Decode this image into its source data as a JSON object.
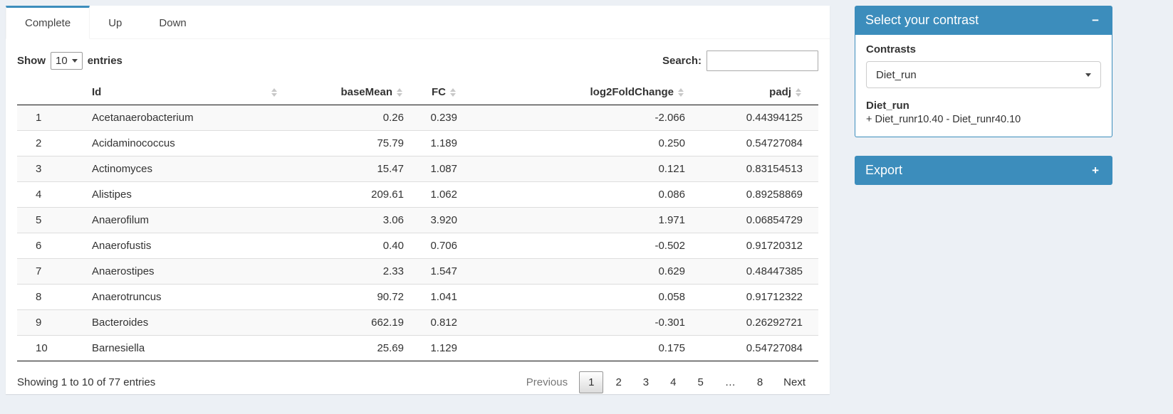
{
  "colors": {
    "primary": "#3c8dbc",
    "page_bg": "#ecf0f5"
  },
  "icons": {
    "sort": "up-down-triangles",
    "select_caret": "down-triangle",
    "collapse": "−",
    "expand": "+"
  },
  "tabs": [
    {
      "label": "Complete",
      "active": true
    },
    {
      "label": "Up",
      "active": false
    },
    {
      "label": "Down",
      "active": false
    }
  ],
  "table_controls": {
    "show_label": "Show",
    "length_value": "10",
    "entries_label": "entries",
    "search_label": "Search:",
    "search_value": ""
  },
  "table": {
    "columns": [
      {
        "label": ""
      },
      {
        "label": "Id"
      },
      {
        "label": "baseMean"
      },
      {
        "label": "FC"
      },
      {
        "label": "log2FoldChange"
      },
      {
        "label": "padj"
      }
    ],
    "rows": [
      {
        "num": "1",
        "id": "Acetanaerobacterium",
        "baseMean": "0.26",
        "fc": "0.239",
        "log2fc": "-2.066",
        "padj": "0.44394125"
      },
      {
        "num": "2",
        "id": "Acidaminococcus",
        "baseMean": "75.79",
        "fc": "1.189",
        "log2fc": "0.250",
        "padj": "0.54727084"
      },
      {
        "num": "3",
        "id": "Actinomyces",
        "baseMean": "15.47",
        "fc": "1.087",
        "log2fc": "0.121",
        "padj": "0.83154513"
      },
      {
        "num": "4",
        "id": "Alistipes",
        "baseMean": "209.61",
        "fc": "1.062",
        "log2fc": "0.086",
        "padj": "0.89258869"
      },
      {
        "num": "5",
        "id": "Anaerofilum",
        "baseMean": "3.06",
        "fc": "3.920",
        "log2fc": "1.971",
        "padj": "0.06854729"
      },
      {
        "num": "6",
        "id": "Anaerofustis",
        "baseMean": "0.40",
        "fc": "0.706",
        "log2fc": "-0.502",
        "padj": "0.91720312"
      },
      {
        "num": "7",
        "id": "Anaerostipes",
        "baseMean": "2.33",
        "fc": "1.547",
        "log2fc": "0.629",
        "padj": "0.48447385"
      },
      {
        "num": "8",
        "id": "Anaerotruncus",
        "baseMean": "90.72",
        "fc": "1.041",
        "log2fc": "0.058",
        "padj": "0.91712322"
      },
      {
        "num": "9",
        "id": "Bacteroides",
        "baseMean": "662.19",
        "fc": "0.812",
        "log2fc": "-0.301",
        "padj": "0.26292721"
      },
      {
        "num": "10",
        "id": "Barnesiella",
        "baseMean": "25.69",
        "fc": "1.129",
        "log2fc": "0.175",
        "padj": "0.54727084"
      }
    ]
  },
  "footer": {
    "info": "Showing 1 to 10 of 77 entries",
    "previous_label": "Previous",
    "pages": [
      "1",
      "2",
      "3",
      "4",
      "5",
      "…",
      "8"
    ],
    "active_page": "1",
    "next_label": "Next"
  },
  "contrast_panel": {
    "title": "Select your contrast",
    "collapse_icon": "−",
    "contrasts_label": "Contrasts",
    "selected_contrast": "Diet_run",
    "contrast_name": "Diet_run",
    "contrast_formula": "+ Diet_runr10.40 - Diet_runr40.10"
  },
  "export_panel": {
    "title": "Export",
    "expand_icon": "+"
  }
}
